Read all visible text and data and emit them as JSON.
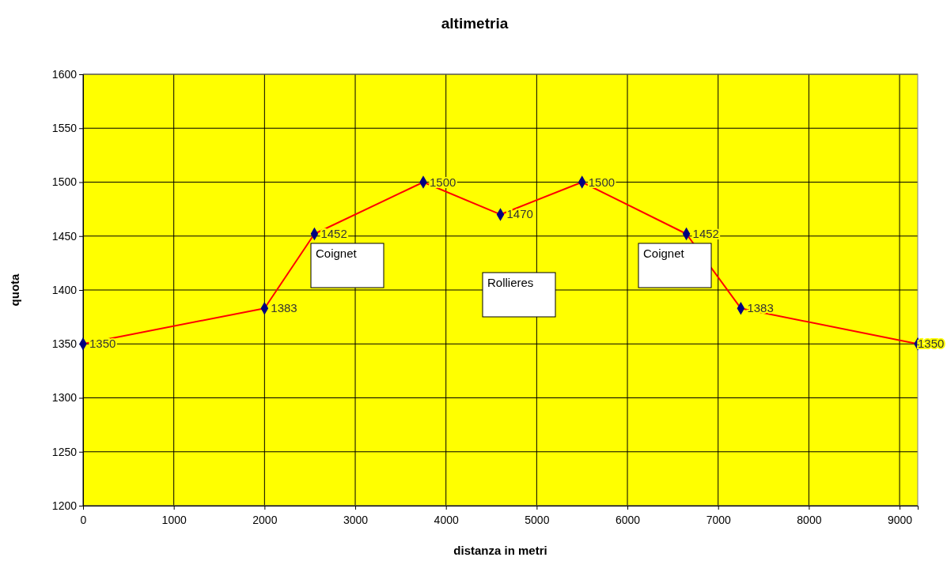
{
  "chart_data": {
    "type": "line",
    "title": "altimetria",
    "xlabel": "distanza in metri",
    "ylabel": "quota",
    "x": [
      0,
      2000,
      2550,
      3750,
      4600,
      5500,
      6650,
      7250,
      9200
    ],
    "series": [
      {
        "color": "#ff0000",
        "values": [
          1350,
          1383,
          1452,
          1500,
          1470,
          1500,
          1452,
          1383,
          1350
        ]
      }
    ],
    "xlim": [
      0,
      9200
    ],
    "xticks": [
      0,
      1000,
      2000,
      3000,
      4000,
      5000,
      6000,
      7000,
      8000,
      9000
    ],
    "ylim": [
      1200,
      1600
    ],
    "yticks": [
      1200,
      1250,
      1300,
      1350,
      1400,
      1450,
      1500,
      1550,
      1600
    ],
    "grid": true,
    "marker": "diamond",
    "line_style": "solid",
    "data_labels": true,
    "annotations": [
      "Coignet",
      "Rollieres",
      "Coignet"
    ]
  }
}
